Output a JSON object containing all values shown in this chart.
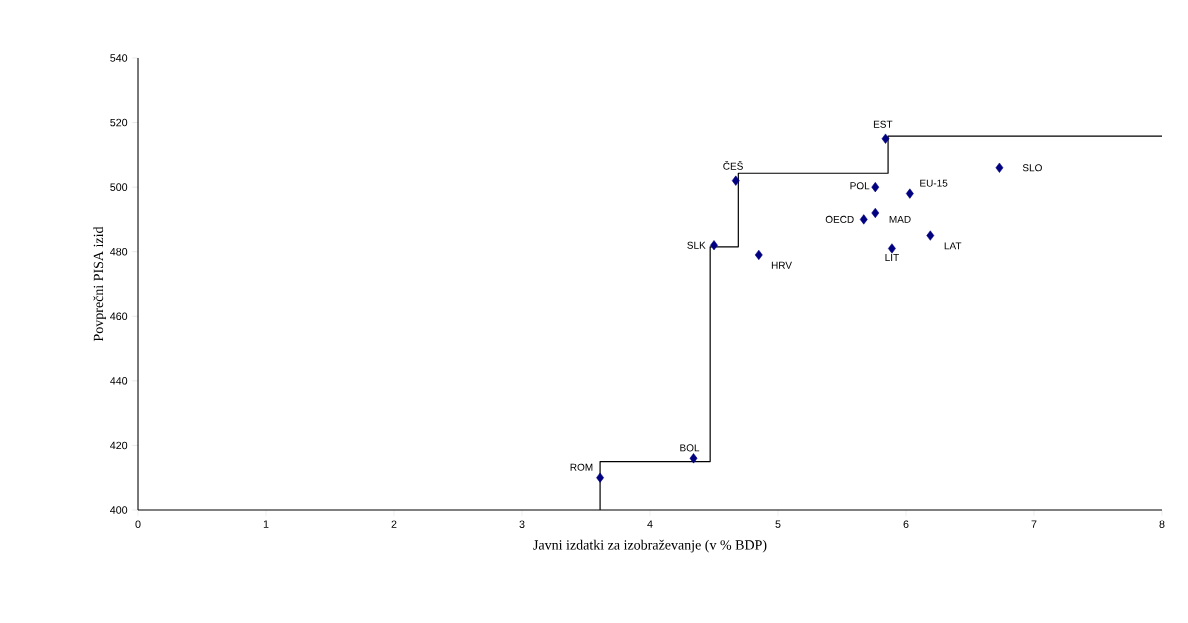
{
  "chart_data": {
    "type": "scatter",
    "xlabel": "Javni izdatki za izobraževanje (v % BDP)",
    "ylabel": "Povprečni PISA izid",
    "xlim": [
      0,
      8
    ],
    "xticks": [
      0,
      1,
      2,
      3,
      4,
      5,
      6,
      7,
      8
    ],
    "ylim": [
      400,
      540
    ],
    "yticks": [
      400,
      420,
      440,
      460,
      480,
      500,
      520,
      540
    ],
    "grid": false,
    "series": [
      {
        "color": "#000080",
        "marker": "diamond",
        "x": [
          3.61,
          4.34,
          4.5,
          4.67,
          4.85,
          5.84,
          5.76,
          6.03,
          6.73,
          5.76,
          5.67,
          6.19,
          5.89
        ],
        "values": [
          410,
          416,
          482,
          502,
          479,
          515,
          500,
          498,
          506,
          492,
          490,
          485,
          481
        ]
      },
      {
        "type": "line",
        "color": "#000000",
        "marker": "none",
        "line_style": "solid",
        "x": [
          3.61,
          3.61,
          4.47,
          4.47,
          4.69,
          4.69,
          5.86,
          5.86,
          8
        ],
        "values": [
          400,
          415,
          415,
          481.5,
          481.5,
          504.3,
          504.3,
          515.8,
          515.8
        ]
      }
    ],
    "annotations": [
      {
        "text": "ROM",
        "x": 3.61,
        "y": 410
      },
      {
        "text": "BOL",
        "x": 4.34,
        "y": 416
      },
      {
        "text": "SLK",
        "x": 4.5,
        "y": 482
      },
      {
        "text": "ČEŠ",
        "x": 4.67,
        "y": 502
      },
      {
        "text": "HRV",
        "x": 4.85,
        "y": 479
      },
      {
        "text": "EST",
        "x": 5.84,
        "y": 515
      },
      {
        "text": "POL",
        "x": 5.76,
        "y": 500
      },
      {
        "text": "EU-15",
        "x": 6.03,
        "y": 498
      },
      {
        "text": "SLO",
        "x": 6.73,
        "y": 506
      },
      {
        "text": "MAD",
        "x": 5.76,
        "y": 492
      },
      {
        "text": "OECD",
        "x": 5.67,
        "y": 490
      },
      {
        "text": "LAT",
        "x": 6.19,
        "y": 485
      },
      {
        "text": "LIT",
        "x": 5.89,
        "y": 481
      }
    ]
  }
}
